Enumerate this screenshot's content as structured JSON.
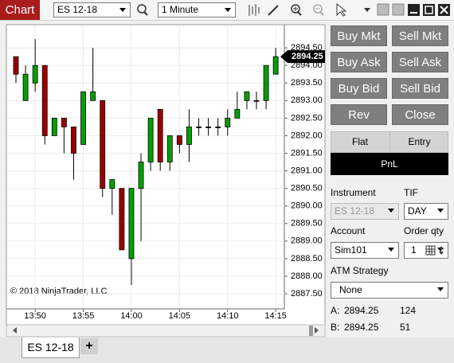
{
  "toolbar": {
    "title": "Chart",
    "instrument": "ES 12-18",
    "interval": "1 Minute"
  },
  "chart_data": {
    "type": "candlestick",
    "categories": [
      null,
      null,
      "13:50",
      null,
      null,
      null,
      null,
      "13:55",
      null,
      null,
      null,
      null,
      "14:00",
      null,
      null,
      null,
      null,
      "14:05",
      null,
      null,
      null,
      null,
      "14:10",
      null,
      null,
      null,
      null,
      "14:15"
    ],
    "series": [
      {
        "name": "open",
        "values": [
          2894.25,
          2893.0,
          2893.5,
          2894.0,
          2892.0,
          2892.5,
          2892.25,
          2891.75,
          2893.0,
          2893.0,
          2890.5,
          2890.5,
          2888.5,
          2890.5,
          2891.25,
          2892.75,
          2891.25,
          2892.0,
          2891.75,
          2892.25,
          2892.25,
          2892.25,
          2892.25,
          2892.5,
          2893.0,
          2893.0,
          2893.0,
          2893.75
        ]
      },
      {
        "name": "high",
        "values": [
          2894.25,
          2894.0,
          2894.75,
          2894.0,
          2892.5,
          2892.5,
          2892.25,
          2893.25,
          2894.5,
          2893.0,
          2890.75,
          2890.5,
          2890.5,
          2891.5,
          2892.5,
          2892.75,
          2892.0,
          2892.0,
          2892.75,
          2892.5,
          2892.5,
          2892.5,
          2892.75,
          2893.25,
          2893.25,
          2893.25,
          2894.0,
          2894.5
        ]
      },
      {
        "name": "low",
        "values": [
          2893.5,
          2893.0,
          2893.25,
          2891.75,
          2892.0,
          2891.5,
          2890.75,
          2891.75,
          2893.0,
          2890.25,
          2889.75,
          2888.75,
          2887.75,
          2889.0,
          2891.0,
          2891.0,
          2891.0,
          2891.5,
          2891.25,
          2892.0,
          2892.0,
          2892.0,
          2892.0,
          2892.5,
          2892.75,
          2892.75,
          2892.75,
          2893.75
        ]
      },
      {
        "name": "close",
        "values": [
          2893.75,
          2893.75,
          2894.0,
          2892.0,
          2892.5,
          2892.25,
          2891.5,
          2893.25,
          2893.25,
          2890.5,
          2890.75,
          2888.75,
          2890.5,
          2891.25,
          2892.5,
          2891.25,
          2892.0,
          2891.75,
          2892.25,
          2892.25,
          2892.25,
          2892.25,
          2892.5,
          2892.75,
          2893.25,
          2893.0,
          2894.0,
          2894.25
        ]
      }
    ],
    "up_color": "#00a000",
    "down_color": "#9b0000",
    "ylim": [
      2887.07,
      2895.16
    ],
    "yticks": [
      {
        "value": 2887.5,
        "label": "2887.50"
      },
      {
        "value": 2888.0,
        "label": "2888.00"
      },
      {
        "value": 2888.5,
        "label": "2888.50"
      },
      {
        "value": 2889.0,
        "label": "2889.00"
      },
      {
        "value": 2889.5,
        "label": "2889.50"
      },
      {
        "value": 2890.0,
        "label": "2890.00"
      },
      {
        "value": 2890.5,
        "label": "2890.50"
      },
      {
        "value": 2891.0,
        "label": "2891.00"
      },
      {
        "value": 2891.5,
        "label": "2891.50"
      },
      {
        "value": 2892.0,
        "label": "2892.00"
      },
      {
        "value": 2892.5,
        "label": "2892.50"
      },
      {
        "value": 2893.0,
        "label": "2893.00"
      },
      {
        "value": 2893.5,
        "label": "2893.50"
      },
      {
        "value": 2894.0,
        "label": "2894.00"
      },
      {
        "value": 2894.5,
        "label": "2894.50"
      }
    ],
    "last_price": 2894.25,
    "grid": true,
    "annotation": "© 2018 NinjaTrader, LLC"
  },
  "order_panel": {
    "buttons": [
      "Buy Mkt",
      "Sell Mkt",
      "Buy Ask",
      "Sell Ask",
      "Buy Bid",
      "Sell Bid",
      "Rev",
      "Close"
    ],
    "flat": "Flat",
    "entry": "Entry",
    "pnl": "PnL",
    "instrument_label": "Instrument",
    "instrument": "ES 12-18",
    "tif_label": "TIF",
    "tif": "DAY",
    "account_label": "Account",
    "account": "Sim101",
    "qty_label": "Order qty",
    "qty": 1,
    "atm_label": "ATM Strategy",
    "atm": "None",
    "quotes": [
      {
        "side": "A:",
        "price": 2894.25,
        "size": 124
      },
      {
        "side": "B:",
        "price": 2894.25,
        "size": 51
      }
    ]
  },
  "tabs": {
    "active": "ES 12-18",
    "add": "+"
  }
}
